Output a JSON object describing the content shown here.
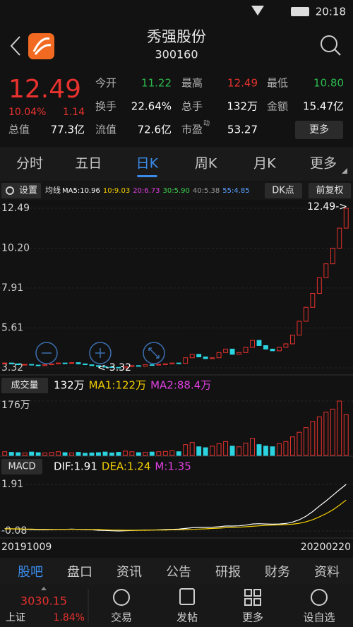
{
  "status_bar": {
    "time": "20:18"
  },
  "header": {
    "title": "秀强股份",
    "code": "300160"
  },
  "quote": {
    "price": "12.49",
    "change_pct": "10.04%",
    "change": "1.14",
    "rows": [
      [
        {
          "label": "今开",
          "value": "11.22",
          "color": "#2db84d"
        },
        {
          "label": "最高",
          "value": "12.49",
          "color": "#e8322e"
        },
        {
          "label": "最低",
          "value": "10.80",
          "color": "#2db84d"
        }
      ],
      [
        {
          "label": "换手",
          "value": "22.64%",
          "color": "#ffffff"
        },
        {
          "label": "总手",
          "value": "132万",
          "color": "#ffffff"
        },
        {
          "label": "金额",
          "value": "15.47亿",
          "color": "#ffffff"
        }
      ],
      [
        {
          "label": "总值",
          "value": "77.3亿",
          "color": "#ffffff"
        },
        {
          "label": "流值",
          "value": "72.6亿",
          "color": "#ffffff"
        },
        {
          "label": "市盈",
          "sup": "动",
          "value": "53.27",
          "color": "#ffffff"
        }
      ]
    ],
    "more_button": "更多"
  },
  "tabs": {
    "items": [
      "分时",
      "五日",
      "日K",
      "周K",
      "月K",
      "更多"
    ],
    "active": 2
  },
  "toolbar": {
    "settings": "设置",
    "ma_label": "均线",
    "ma": [
      {
        "text": "MA5:10.96",
        "color": "#ffffff"
      },
      {
        "text": "10:9.03",
        "color": "#f5d000"
      },
      {
        "text": "20:6.73",
        "color": "#e040e0"
      },
      {
        "text": "30:5.90",
        "color": "#3ccf4e"
      },
      {
        "text": "40:5.38",
        "color": "#9a9a9a"
      },
      {
        "text": "55:4.85",
        "color": "#5aa0ff"
      }
    ],
    "dk": "DK点",
    "adjust": "前复权"
  },
  "chart_data": [
    {
      "type": "candlestick",
      "up_color": "#e8322e",
      "down_color": "#2bd4e0",
      "values": [
        3.6,
        3.55,
        3.5,
        3.52,
        3.48,
        3.45,
        3.5,
        3.55,
        3.6,
        3.58,
        3.62,
        3.55,
        3.5,
        3.45,
        3.4,
        3.38,
        3.35,
        3.32,
        3.4,
        3.45,
        3.42,
        3.5,
        3.48,
        3.52,
        3.55,
        3.6,
        3.58,
        3.9,
        4.1,
        3.95,
        3.85,
        3.9,
        4.2,
        4.4,
        4.1,
        4.2,
        4.5,
        4.9,
        4.6,
        4.4,
        4.3,
        4.5,
        4.7,
        5.2,
        6.0,
        6.8,
        7.6,
        8.5,
        9.3,
        10.2,
        11.35,
        12.49
      ],
      "ylim": [
        3.32,
        12.49
      ],
      "yticks": [
        12.49,
        {
          "value": 10.2,
          "label": "10.20"
        },
        7.91,
        5.61,
        3.32
      ],
      "grid": true,
      "annotations": [
        "12.49->",
        "<-3.32"
      ]
    },
    {
      "type": "bar",
      "title": "成交量",
      "legend": [
        {
          "text": "132万",
          "color": "#ffffff"
        },
        {
          "text": "MA1:122万",
          "color": "#f5d000"
        },
        {
          "text": "MA2:88.4万",
          "color": "#e040e0"
        }
      ],
      "values": [
        12,
        10,
        9,
        8,
        11,
        9,
        8,
        10,
        12,
        9,
        8,
        10,
        7,
        8,
        9,
        11,
        8,
        10,
        14,
        12,
        9,
        10,
        11,
        12,
        13,
        15,
        12,
        35,
        42,
        28,
        25,
        30,
        38,
        45,
        30,
        28,
        40,
        55,
        35,
        30,
        28,
        38,
        45,
        60,
        75,
        90,
        110,
        125,
        140,
        150,
        176,
        132
      ],
      "ylim": [
        0,
        176
      ],
      "yticks": [
        {
          "value": 176,
          "label": "176万"
        }
      ]
    },
    {
      "type": "line",
      "title": "MACD",
      "extra_label": {
        "text": "M:1.35",
        "color": "#e040e0"
      },
      "series": [
        {
          "name": "DIF:1.91",
          "color": "#ffffff",
          "values": [
            0.02,
            0.01,
            0,
            -0.01,
            -0.02,
            -0.03,
            -0.03,
            -0.02,
            -0.01,
            -0.01,
            0,
            -0.01,
            -0.02,
            -0.03,
            -0.05,
            -0.06,
            -0.07,
            -0.08,
            -0.07,
            -0.06,
            -0.05,
            -0.04,
            -0.04,
            -0.03,
            -0.02,
            -0.01,
            0,
            0.03,
            0.06,
            0.07,
            0.07,
            0.08,
            0.1,
            0.13,
            0.13,
            0.14,
            0.17,
            0.22,
            0.23,
            0.22,
            0.21,
            0.22,
            0.24,
            0.3,
            0.4,
            0.55,
            0.75,
            0.98,
            1.2,
            1.44,
            1.68,
            1.91
          ]
        },
        {
          "name": "DEA:1.24",
          "color": "#f5d000",
          "values": [
            0.01,
            0.01,
            0.01,
            0,
            0,
            -0.01,
            -0.01,
            -0.01,
            -0.01,
            -0.01,
            -0.01,
            -0.01,
            -0.01,
            -0.02,
            -0.02,
            -0.03,
            -0.04,
            -0.04,
            -0.05,
            -0.05,
            -0.05,
            -0.05,
            -0.04,
            -0.04,
            -0.04,
            -0.03,
            -0.03,
            -0.02,
            -0.01,
            0,
            0.01,
            0.03,
            0.04,
            0.06,
            0.07,
            0.08,
            0.1,
            0.12,
            0.14,
            0.16,
            0.17,
            0.18,
            0.19,
            0.21,
            0.25,
            0.31,
            0.4,
            0.52,
            0.66,
            0.82,
            1.02,
            1.24
          ]
        }
      ],
      "ylim": [
        -0.08,
        1.91
      ],
      "yticks": [
        1.91,
        -0.08
      ]
    }
  ],
  "dates": [
    "20191009",
    "20200220"
  ],
  "bottom_tabs": {
    "items": [
      "股吧",
      "盘口",
      "资讯",
      "公告",
      "研报",
      "财务",
      "资料"
    ],
    "active": 0
  },
  "bottom_bar": {
    "index_value": "3030.15",
    "index_name": "上证",
    "index_change": "1.84%",
    "actions": [
      "交易",
      "发帖",
      "更多",
      "设自选"
    ]
  }
}
